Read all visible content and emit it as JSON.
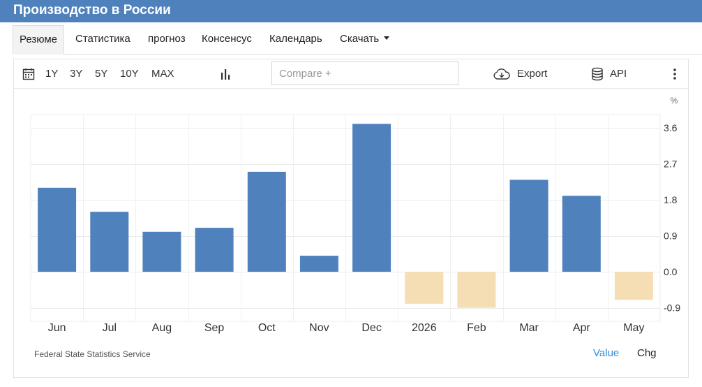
{
  "header": {
    "title": "Производство в России"
  },
  "tabs": [
    {
      "label": "Резюме"
    },
    {
      "label": "Статистика"
    },
    {
      "label": "прогноз"
    },
    {
      "label": "Консенсус"
    },
    {
      "label": "Календарь"
    },
    {
      "label": "Скачать"
    }
  ],
  "toolbar": {
    "ranges": [
      "1Y",
      "3Y",
      "5Y",
      "10Y",
      "MAX"
    ],
    "compare_placeholder": "Compare +",
    "export_label": "Export",
    "api_label": "API"
  },
  "chart_data": {
    "type": "bar",
    "unit_label": "%",
    "categories": [
      "Jun",
      "Jul",
      "Aug",
      "Sep",
      "Oct",
      "Nov",
      "Dec",
      "2026",
      "Feb",
      "Mar",
      "Apr",
      "May"
    ],
    "values": [
      2.1,
      1.5,
      1.0,
      1.1,
      2.5,
      0.4,
      3.7,
      -0.8,
      -0.9,
      2.3,
      1.9,
      -0.7
    ],
    "yticks": [
      -0.9,
      0.0,
      0.9,
      1.8,
      2.7,
      3.6
    ],
    "ylim": [
      -1.35,
      4.05
    ],
    "grid": true,
    "colors": {
      "positive": "#4f81bd",
      "negative": "#f5deb3"
    }
  },
  "footer": {
    "source": "Federal State Statistics Service",
    "value_label": "Value",
    "chg_label": "Chg"
  },
  "colors": {
    "brand": "#4f81bd",
    "link": "#2e8bd8"
  }
}
